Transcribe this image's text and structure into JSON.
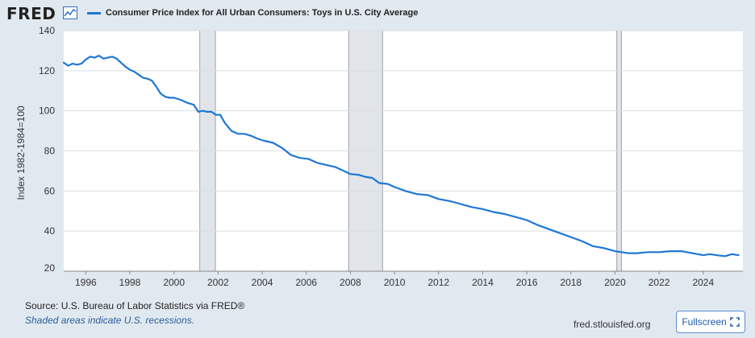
{
  "header": {
    "logo_text": "FRED",
    "legend_label": "Consumer Price Index for All Urban Consumers: Toys in U.S. City Average",
    "series_color": "#1f77d4"
  },
  "footer": {
    "source": "Source: U.S. Bureau of Labor Statistics via FRED®",
    "note": "Shaded areas indicate U.S. recessions.",
    "url": "fred.stlouisfed.org",
    "fullscreen_label": "Fullscreen"
  },
  "icons": {
    "logo": "fred-graph-icon",
    "fullscreen": "expand-icon"
  },
  "chart_data": {
    "type": "line",
    "title": "Consumer Price Index for All Urban Consumers: Toys in U.S. City Average",
    "xlabel": "",
    "ylabel": "Index 1982-1984=100",
    "xlim": [
      1995,
      2025.8
    ],
    "ylim": [
      20,
      140
    ],
    "yticks": [
      20,
      40,
      60,
      80,
      100,
      120,
      140
    ],
    "xticks": [
      "1996",
      "1998",
      "2000",
      "2002",
      "2004",
      "2006",
      "2008",
      "2010",
      "2012",
      "2014",
      "2016",
      "2018",
      "2020",
      "2022",
      "2024"
    ],
    "grid": true,
    "recessions": [
      [
        2001.17,
        2001.88
      ],
      [
        2007.92,
        2009.46
      ],
      [
        2020.08,
        2020.29
      ]
    ],
    "series": [
      {
        "name": "Consumer Price Index for All Urban Consumers: Toys in U.S. City Average",
        "x": [
          1995.0,
          1995.2,
          1995.4,
          1995.6,
          1995.8,
          1996.0,
          1996.2,
          1996.4,
          1996.6,
          1996.8,
          1997.0,
          1997.2,
          1997.4,
          1997.6,
          1997.8,
          1998.0,
          1998.2,
          1998.4,
          1998.6,
          1998.8,
          1999.0,
          1999.2,
          1999.4,
          1999.6,
          1999.8,
          2000.0,
          2000.3,
          2000.6,
          2000.9,
          2001.1,
          2001.3,
          2001.5,
          2001.7,
          2001.9,
          2002.1,
          2002.3,
          2002.6,
          2002.9,
          2003.2,
          2003.5,
          2003.8,
          2004.1,
          2004.5,
          2004.9,
          2005.3,
          2005.7,
          2006.1,
          2006.5,
          2006.9,
          2007.3,
          2007.7,
          2008.0,
          2008.4,
          2008.7,
          2009.0,
          2009.3,
          2009.7,
          2010.0,
          2010.5,
          2011.0,
          2011.5,
          2012.0,
          2012.5,
          2013.0,
          2013.5,
          2014.0,
          2014.5,
          2015.0,
          2015.5,
          2016.0,
          2016.5,
          2017.0,
          2017.5,
          2018.0,
          2018.5,
          2019.0,
          2019.5,
          2020.0,
          2020.3,
          2020.6,
          2021.0,
          2021.5,
          2022.0,
          2022.5,
          2023.0,
          2023.5,
          2024.0,
          2024.3,
          2024.6,
          2025.0,
          2025.3,
          2025.6
        ],
        "values": [
          124,
          122.5,
          123.5,
          123,
          123.5,
          125.5,
          127,
          126.5,
          127.5,
          126,
          126.5,
          127,
          126,
          124,
          122,
          120.5,
          119.5,
          118,
          116.5,
          116,
          115,
          112,
          108.5,
          107,
          106.5,
          106.5,
          105.5,
          104,
          103,
          99.5,
          100,
          99.5,
          99.5,
          98,
          98,
          94,
          90,
          88.5,
          88.5,
          87.5,
          86,
          85,
          84,
          81.5,
          78,
          76.5,
          76,
          74,
          73,
          72,
          70,
          68.5,
          68,
          67,
          66.5,
          64,
          63.5,
          62,
          60,
          58.5,
          58,
          56,
          55,
          53.5,
          52,
          51,
          49.5,
          48.5,
          47,
          45.5,
          43,
          41,
          39,
          37,
          35,
          32.5,
          31.5,
          30,
          29.5,
          29,
          29,
          29.5,
          29.5,
          30,
          30,
          29,
          28,
          28.5,
          28,
          27.5,
          28.5,
          28
        ]
      }
    ]
  }
}
